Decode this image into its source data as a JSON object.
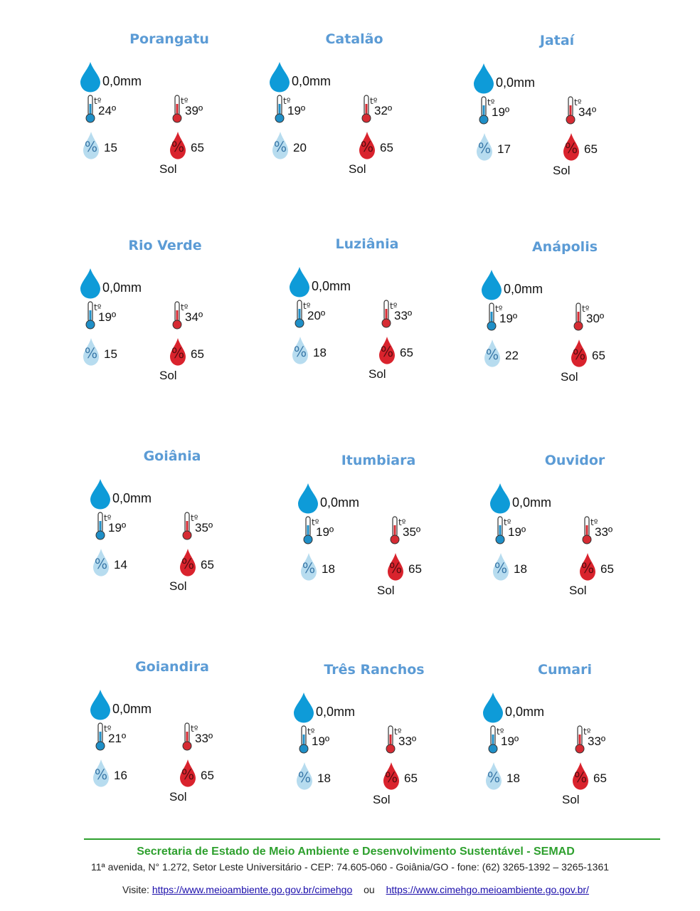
{
  "cities": [
    {
      "name": "Porangatu",
      "rain": "0,0mm",
      "tmin": "24º",
      "tmax": "39º",
      "hmin": "15",
      "hmax": "65",
      "sky": "Sol"
    },
    {
      "name": "Catalão",
      "rain": "0,0mm",
      "tmin": "19º",
      "tmax": "32º",
      "hmin": "20",
      "hmax": "65",
      "sky": "Sol"
    },
    {
      "name": "Jataí",
      "rain": "0,0mm",
      "tmin": "19º",
      "tmax": "34º",
      "hmin": "17",
      "hmax": "65",
      "sky": "Sol"
    },
    {
      "name": "Rio Verde",
      "rain": "0,0mm",
      "tmin": "19º",
      "tmax": "34º",
      "hmin": "15",
      "hmax": "65",
      "sky": "Sol"
    },
    {
      "name": "Luziânia",
      "rain": "0,0mm",
      "tmin": "20º",
      "tmax": "33º",
      "hmin": "18",
      "hmax": "65",
      "sky": "Sol"
    },
    {
      "name": "Anápolis",
      "rain": "0,0mm",
      "tmin": "19º",
      "tmax": "30º",
      "hmin": "22",
      "hmax": "65",
      "sky": "Sol"
    },
    {
      "name": "Goiânia",
      "rain": "0,0mm",
      "tmin": "19º",
      "tmax": "35º",
      "hmin": "14",
      "hmax": "65",
      "sky": "Sol"
    },
    {
      "name": "Itumbiara",
      "rain": "0,0mm",
      "tmin": "19º",
      "tmax": "35º",
      "hmin": "18",
      "hmax": "65",
      "sky": "Sol"
    },
    {
      "name": "Ouvidor",
      "rain": "0,0mm",
      "tmin": "19º",
      "tmax": "33º",
      "hmin": "18",
      "hmax": "65",
      "sky": "Sol"
    },
    {
      "name": "Goiandira",
      "rain": "0,0mm",
      "tmin": "21º",
      "tmax": "33º",
      "hmin": "16",
      "hmax": "65",
      "sky": "Sol"
    },
    {
      "name": "Três Ranchos",
      "rain": "0,0mm",
      "tmin": "19º",
      "tmax": "33º",
      "hmin": "18",
      "hmax": "65",
      "sky": "Sol"
    },
    {
      "name": "Cumari",
      "rain": "0,0mm",
      "tmin": "19º",
      "tmax": "33º",
      "hmin": "18",
      "hmax": "65",
      "sky": "Sol"
    }
  ],
  "icon_text": {
    "thermo": "tº",
    "humidity": "%"
  },
  "footer": {
    "org": "Secretaria de Estado de Meio Ambiente e Desenvolvimento Sustentável - SEMAD",
    "address": "11ª avenida, N° 1.272, Setor Leste Universitário - CEP: 74.605-060 - Goiânia/GO - fone: (62) 3265-1392 – 3265-1361",
    "visit_label": "Visite:",
    "link1": "https://www.meioambiente.go.gov.br/cimehgo",
    "or_label": "ou",
    "link2": "https://www.cimehgo.meioambiente.go.gov.br/"
  },
  "colors": {
    "title": "#5b9bd5",
    "rain_drop": "#0e9bd8",
    "cold": "#1f8fc7",
    "hot": "#d62b33",
    "humid_low": "#b7dcef",
    "humid_high": "#d9232d",
    "footer_green": "#2ea02e"
  }
}
